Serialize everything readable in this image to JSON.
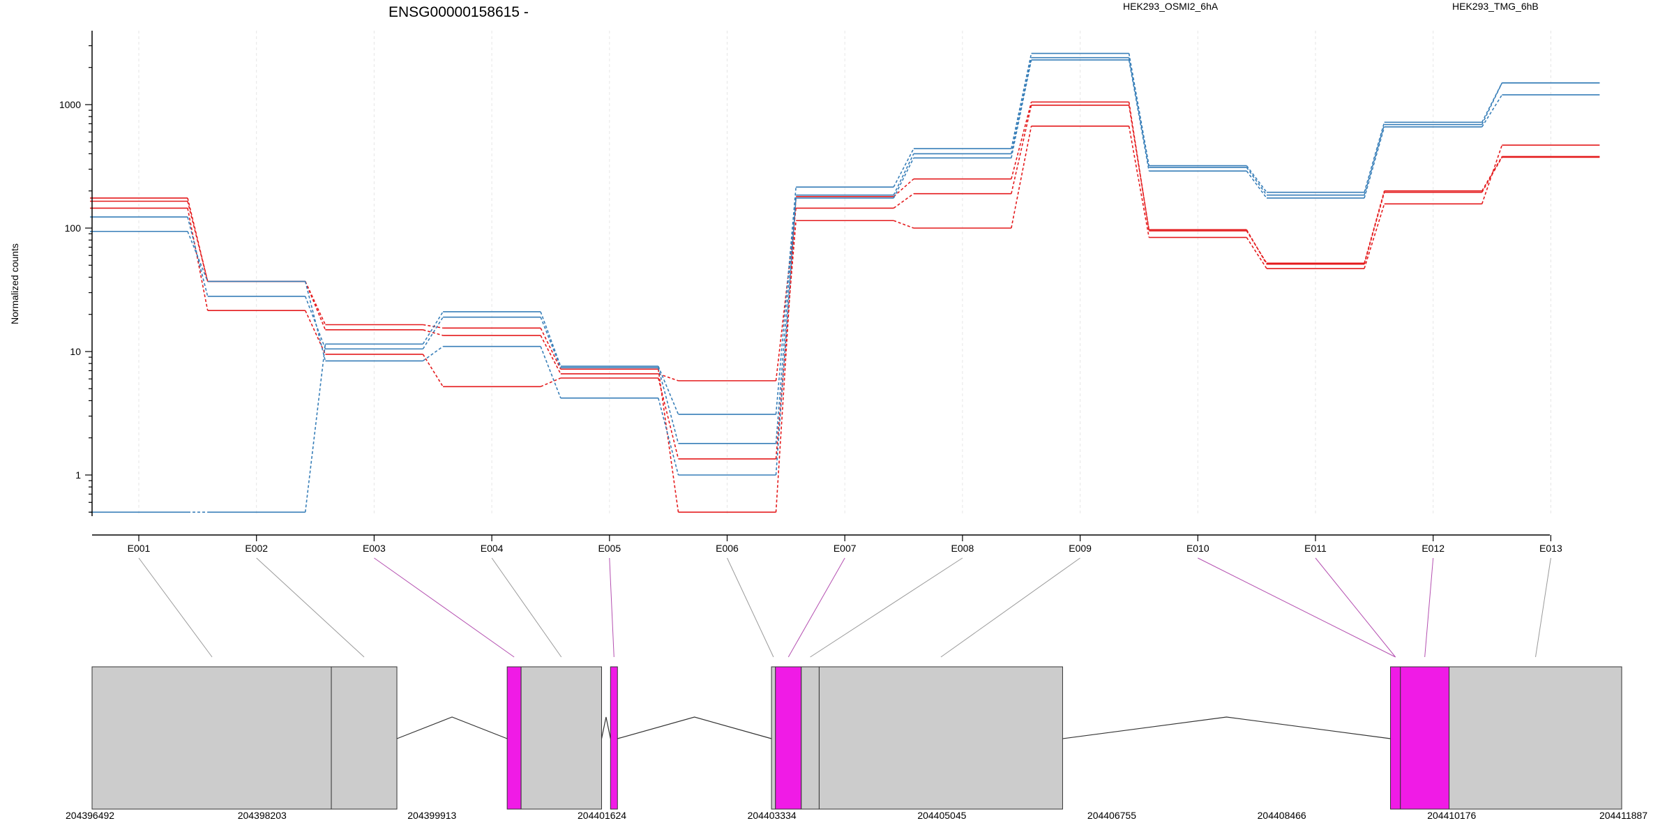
{
  "chart_data": {
    "type": "line",
    "title": "ENSG00000158615 -",
    "ylabel": "Normalized counts",
    "xlabel": "",
    "y_scale": "log",
    "y_ticks": [
      1,
      10,
      100,
      1000
    ],
    "ylim": [
      0.5,
      3500
    ],
    "grid": "vertical dashed",
    "categories": [
      "E001",
      "E002",
      "E003",
      "E004",
      "E005",
      "E006",
      "E007",
      "E008",
      "E009",
      "E010",
      "E011",
      "E012",
      "E013"
    ],
    "legend": [
      {
        "name": "HEK293_OSMI2_6hA",
        "color": "#e41a1c"
      },
      {
        "name": "HEK293_TMG_6hB",
        "color": "#377eb8"
      }
    ],
    "series": [
      {
        "group": "HEK293_OSMI2_6hA",
        "values": [
          175,
          37,
          16.5,
          15.5,
          7.2,
          0.5,
          180,
          250,
          1050,
          95,
          52,
          200,
          380
        ]
      },
      {
        "group": "HEK293_OSMI2_6hA",
        "values": [
          165,
          37,
          15,
          13.5,
          6.6,
          5.8,
          145,
          190,
          990,
          97,
          51,
          195,
          375
        ]
      },
      {
        "group": "HEK293_OSMI2_6hA",
        "values": [
          145,
          21.5,
          9.5,
          5.2,
          6.1,
          1.35,
          115,
          100,
          670,
          84,
          47,
          157,
          470
        ]
      },
      {
        "group": "HEK293_TMG_6hB",
        "values": [
          0.5,
          0.5,
          11.5,
          21,
          7.6,
          3.1,
          215,
          440,
          2600,
          320,
          195,
          720,
          1500
        ]
      },
      {
        "group": "HEK293_TMG_6hB",
        "values": [
          123,
          28,
          10.5,
          19,
          7.4,
          1.8,
          185,
          400,
          2400,
          310,
          185,
          690,
          1500
        ]
      },
      {
        "group": "HEK293_TMG_6hB",
        "values": [
          94,
          37,
          8.4,
          11,
          4.2,
          1.0,
          175,
          370,
          2300,
          290,
          175,
          660,
          1200
        ]
      }
    ],
    "gene_model": {
      "coordinate_ticks": [
        204396492,
        204398203,
        204399913,
        204401624,
        204403334,
        204405045,
        204406755,
        204408466,
        204410176,
        204411887
      ],
      "exons": [
        {
          "start": 204396492,
          "end": 204398900,
          "color": "#cccccc"
        },
        {
          "start": 204398900,
          "end": 204399560,
          "color": "#cccccc"
        },
        {
          "start": 204400670,
          "end": 204400810,
          "color": "#f01be6"
        },
        {
          "start": 204400810,
          "end": 204401620,
          "color": "#cccccc"
        },
        {
          "start": 204401710,
          "end": 204401780,
          "color": "#f01be6"
        },
        {
          "start": 204403330,
          "end": 204403370,
          "color": "#cccccc"
        },
        {
          "start": 204403370,
          "end": 204403630,
          "color": "#f01be6"
        },
        {
          "start": 204403630,
          "end": 204403810,
          "color": "#cccccc"
        },
        {
          "start": 204403810,
          "end": 204406260,
          "color": "#cccccc"
        },
        {
          "start": 204409560,
          "end": 204409660,
          "color": "#f01be6"
        },
        {
          "start": 204409660,
          "end": 204410150,
          "color": "#f01be6"
        },
        {
          "start": 204410150,
          "end": 204411887,
          "color": "#cccccc"
        }
      ],
      "introns": [
        {
          "start": 204399560,
          "end": 204400670
        },
        {
          "start": 204401620,
          "end": 204401710
        },
        {
          "start": 204401780,
          "end": 204403330
        },
        {
          "start": 204406260,
          "end": 204409560
        }
      ],
      "exon_links": [
        {
          "bin": "E001",
          "position": 204397700,
          "color": "#9a9a9a"
        },
        {
          "bin": "E002",
          "position": 204399230,
          "color": "#9a9a9a"
        },
        {
          "bin": "E003",
          "position": 204400740,
          "color": "#b44fb0"
        },
        {
          "bin": "E004",
          "position": 204401215,
          "color": "#9a9a9a"
        },
        {
          "bin": "E005",
          "position": 204401745,
          "color": "#b44fb0"
        },
        {
          "bin": "E006",
          "position": 204403350,
          "color": "#9a9a9a"
        },
        {
          "bin": "E007",
          "position": 204403500,
          "color": "#b44fb0"
        },
        {
          "bin": "E008",
          "position": 204403720,
          "color": "#9a9a9a"
        },
        {
          "bin": "E009",
          "position": 204405035,
          "color": "#9a9a9a"
        },
        {
          "bin": "E010",
          "position": 204409610,
          "color": "#b44fb0"
        },
        {
          "bin": "E011",
          "position": 204409610,
          "color": "#b44fb0"
        },
        {
          "bin": "E012",
          "position": 204409905,
          "color": "#b44fb0"
        },
        {
          "bin": "E013",
          "position": 204411020,
          "color": "#9a9a9a"
        }
      ]
    }
  }
}
